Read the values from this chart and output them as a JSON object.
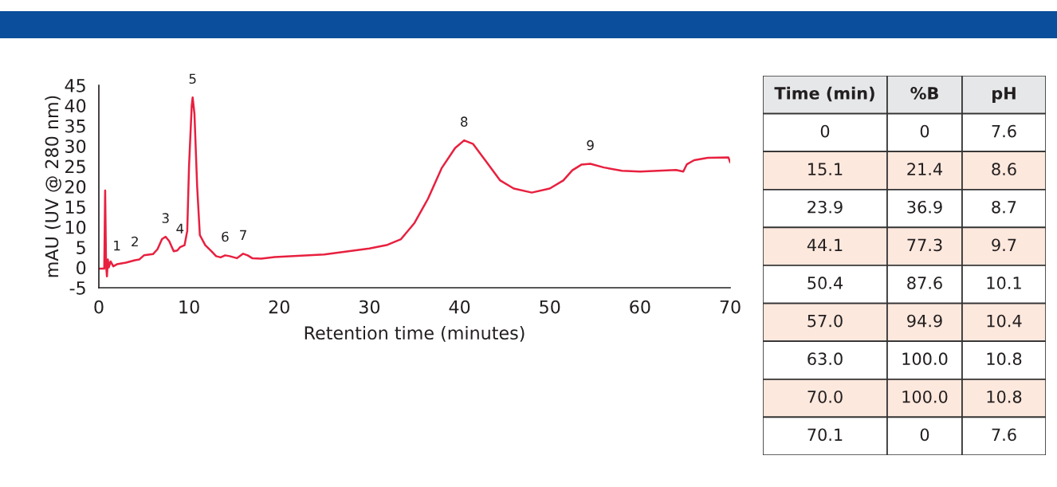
{
  "chart_data": [
    {
      "type": "line",
      "xlabel": "Retention time (minutes)",
      "ylabel": "mAU (UV @ 280 nm)",
      "xlim": [
        0,
        70
      ],
      "xticks": [
        0,
        10,
        20,
        30,
        40,
        50,
        60,
        70
      ],
      "ylim": [
        -5,
        45
      ],
      "yticks": [
        -5,
        0,
        5,
        10,
        15,
        20,
        25,
        30,
        35,
        40,
        45
      ],
      "grid": false,
      "legend": false,
      "marker": "none",
      "line_style": "solid",
      "series": [
        {
          "color": "#e8203f",
          "x": [
            0,
            0.6,
            0.7,
            0.8,
            0.9,
            1.0,
            1.1,
            1.3,
            1.6,
            2,
            3,
            4,
            4.5,
            5,
            6,
            6.5,
            7,
            7.4,
            7.8,
            8.3,
            8.7,
            9,
            9.5,
            9.8,
            10.0,
            10.3,
            10.4,
            10.6,
            10.9,
            11.2,
            11.8,
            12.5,
            13,
            13.5,
            14,
            14.5,
            15.3,
            16,
            16.5,
            17,
            18,
            19.5,
            25,
            30,
            32,
            33.5,
            35,
            36.5,
            38,
            39.5,
            40.5,
            41.5,
            43,
            44.5,
            46,
            48,
            50,
            51.5,
            52.5,
            53.5,
            54.5,
            56,
            58,
            60,
            63,
            64,
            64.8,
            65.2,
            66,
            67.5,
            69.8,
            70
          ],
          "values": [
            -0.3,
            -0.3,
            19,
            0.5,
            -2.2,
            2,
            0,
            1.5,
            0.3,
            0.8,
            1.2,
            1.8,
            2,
            3,
            3.3,
            4.5,
            7,
            7.6,
            6.5,
            4,
            4.2,
            5,
            5.5,
            9,
            25,
            40,
            42,
            38,
            20,
            8,
            5.5,
            4,
            2.8,
            2.5,
            3.0,
            2.8,
            2.3,
            3.4,
            3.0,
            2.3,
            2.2,
            2.6,
            3.2,
            4.7,
            5.6,
            7,
            11,
            17,
            24.5,
            29.5,
            31.4,
            30.5,
            26,
            21.5,
            19.5,
            18.5,
            19.5,
            21.5,
            24,
            25.4,
            25.6,
            24.7,
            23.9,
            23.7,
            24,
            24.1,
            23.7,
            25.5,
            26.5,
            27.1,
            27.2,
            26
          ]
        }
      ],
      "annotations": [
        {
          "text": "1",
          "x": 2,
          "y": 0.8
        },
        {
          "text": "2",
          "x": 4,
          "y": 1.8
        },
        {
          "text": "3",
          "x": 7.4,
          "y": 7.6
        },
        {
          "text": "4",
          "x": 9,
          "y": 5
        },
        {
          "text": "5",
          "x": 10.4,
          "y": 42
        },
        {
          "text": "6",
          "x": 14,
          "y": 3.0
        },
        {
          "text": "7",
          "x": 16,
          "y": 3.4
        },
        {
          "text": "8",
          "x": 40.5,
          "y": 31.4
        },
        {
          "text": "9",
          "x": 54.5,
          "y": 25.6
        }
      ]
    },
    {
      "type": "other",
      "categories": [
        "Time (min)",
        "%B",
        "pH"
      ],
      "cell_labels": [
        [
          "0",
          "0",
          "7.6"
        ],
        [
          "15.1",
          "21.4",
          "8.6"
        ],
        [
          "23.9",
          "36.9",
          "8.7"
        ],
        [
          "44.1",
          "77.3",
          "9.7"
        ],
        [
          "50.4",
          "87.6",
          "10.1"
        ],
        [
          "57.0",
          "94.9",
          "10.4"
        ],
        [
          "63.0",
          "100.0",
          "10.8"
        ],
        [
          "70.0",
          "100.0",
          "10.8"
        ],
        [
          "70.1",
          "0",
          "7.6"
        ]
      ]
    }
  ]
}
